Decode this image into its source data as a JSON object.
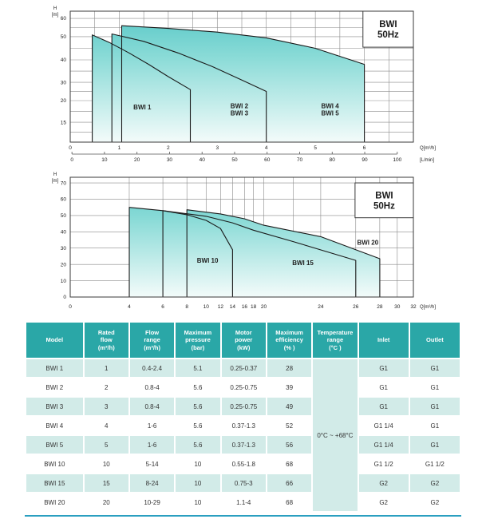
{
  "colors": {
    "header_teal": "#2aa7a7",
    "row_alt_teal": "#d2ebe8",
    "accent_line": "#2a9fc0",
    "fill_top": "#58c8c7",
    "fill_mid": "#8adbd7",
    "fill_bottom": "#f3fbfa",
    "grid": "#8a8a8a",
    "border": "#3a3a3a",
    "curve": "#1a1a1a"
  },
  "chart_data": [
    {
      "type": "area",
      "title_box": {
        "lines": [
          "BWI",
          "50Hz"
        ],
        "fx0": 0.853,
        "fy0": 0.0,
        "fx1": 1.0,
        "fy1": 0.275
      },
      "x_axis": {
        "title": "Q[m³/h]",
        "xlabel_dy": 9,
        "map": [
          [
            0,
            0
          ],
          [
            7,
            1
          ]
        ],
        "ticks": [
          {
            "v": 0,
            "label": "0"
          },
          {
            "v": 1,
            "label": "1"
          },
          {
            "v": 2,
            "label": "2"
          },
          {
            "v": 3,
            "label": "3"
          },
          {
            "v": 4,
            "label": "4"
          },
          {
            "v": 5,
            "label": "5"
          },
          {
            "v": 6,
            "label": "6"
          }
        ],
        "gridlines": [
          0.5,
          1,
          1.5,
          2,
          2.5,
          3,
          3.5,
          4,
          4.5,
          5,
          5.5,
          6,
          6.5
        ]
      },
      "y_axis": {
        "title_lines": [
          "H",
          "[m]"
        ],
        "baseline": 10,
        "map": [
          [
            60,
            0.055
          ],
          [
            50,
            0.195
          ],
          [
            40,
            0.372
          ],
          [
            30,
            0.543
          ],
          [
            20,
            0.683
          ],
          [
            15,
            0.848
          ],
          [
            10,
            1.0
          ]
        ],
        "ticks": [
          {
            "v": 60,
            "label": "60"
          },
          {
            "v": 50,
            "label": "50"
          },
          {
            "v": 40,
            "label": "40"
          },
          {
            "v": 30,
            "label": "30"
          },
          {
            "v": 20,
            "label": "20"
          },
          {
            "v": 15,
            "label": "15"
          }
        ],
        "gridlines": [
          60,
          55,
          50,
          45,
          40,
          35,
          30,
          25,
          20,
          17.5,
          15,
          12.5
        ]
      },
      "ruler": {
        "unit": "[L/min]",
        "step": 10,
        "max": 100,
        "f0": 0.005,
        "f1": 0.953,
        "labels": [
          "0",
          "10",
          "20",
          "30",
          "40",
          "50",
          "60",
          "70",
          "80",
          "90",
          "100"
        ]
      },
      "regions": [
        {
          "name": "BWI 4/5",
          "points": [
            [
              1.05,
              56
            ],
            [
              2,
              54.5
            ],
            [
              3,
              52.5
            ],
            [
              4,
              49.5
            ],
            [
              5,
              45
            ],
            [
              6,
              38
            ]
          ]
        },
        {
          "name": "BWI 2/3",
          "points": [
            [
              0.85,
              51.5
            ],
            [
              1.5,
              48
            ],
            [
              2.2,
              43
            ],
            [
              2.9,
              37
            ],
            [
              3.5,
              31
            ],
            [
              4.0,
              25
            ]
          ]
        },
        {
          "name": "BWI 1",
          "points": [
            [
              0.45,
              51
            ],
            [
              0.8,
              47.5
            ],
            [
              1.2,
              43
            ],
            [
              1.6,
              38
            ],
            [
              2.0,
              32.5
            ],
            [
              2.45,
              26
            ]
          ]
        }
      ],
      "labels": [
        {
          "lines": [
            "BWI 1"
          ],
          "x": 1.47,
          "y": 18.5
        },
        {
          "lines": [
            "BWI 2",
            "BWI 3"
          ],
          "x": 3.45,
          "y": 18
        },
        {
          "lines": [
            "BWI 4",
            "BWI 5"
          ],
          "x": 5.3,
          "y": 18
        }
      ]
    },
    {
      "type": "area",
      "title_box": {
        "lines": [
          "BWI",
          "50Hz"
        ],
        "fx0": 0.83,
        "fy0": 0.047,
        "fx1": 1.0,
        "fy1": 0.338
      },
      "x_axis": {
        "title": "Q[m³/h]",
        "xlabel_dy": 14,
        "map": [
          [
            0,
            0
          ],
          [
            4,
            0.172
          ],
          [
            6,
            0.27
          ],
          [
            8,
            0.34
          ],
          [
            10,
            0.396
          ],
          [
            12,
            0.438
          ],
          [
            14,
            0.473
          ],
          [
            16,
            0.508
          ],
          [
            18,
            0.534
          ],
          [
            20,
            0.564
          ],
          [
            22,
            0.65
          ],
          [
            24,
            0.73
          ],
          [
            26,
            0.832
          ],
          [
            28,
            0.902
          ],
          [
            30,
            0.953
          ],
          [
            32,
            1.0
          ]
        ],
        "ticks": [
          {
            "v": 0,
            "label": "0"
          },
          {
            "v": 4,
            "label": "4"
          },
          {
            "v": 6,
            "label": "6"
          },
          {
            "v": 8,
            "label": "8"
          },
          {
            "v": 10,
            "label": "10"
          },
          {
            "v": 12,
            "label": "12"
          },
          {
            "v": 14,
            "label": "14"
          },
          {
            "v": 16,
            "label": "16"
          },
          {
            "v": 18,
            "label": "18"
          },
          {
            "v": 20,
            "label": "20"
          },
          {
            "v": 24,
            "label": "24"
          },
          {
            "v": 26,
            "label": "26"
          },
          {
            "v": 28,
            "label": "28"
          },
          {
            "v": 30,
            "label": "30"
          },
          {
            "v": 32,
            "label": "32"
          }
        ],
        "gridlines": [
          4,
          6,
          8,
          10,
          12,
          14,
          16,
          18,
          20,
          22,
          24,
          26,
          28,
          30
        ]
      },
      "y_axis": {
        "title_lines": [
          "H",
          "[m]"
        ],
        "baseline": 0,
        "map": [
          [
            70,
            0.047
          ],
          [
            0,
            1.0
          ]
        ],
        "ticks": [
          {
            "v": 70,
            "label": "70"
          },
          {
            "v": 60,
            "label": "60"
          },
          {
            "v": 50,
            "label": "50"
          },
          {
            "v": 40,
            "label": "40"
          },
          {
            "v": 30,
            "label": "30"
          },
          {
            "v": 20,
            "label": "20"
          },
          {
            "v": 10,
            "label": "10"
          },
          {
            "v": 0,
            "label": "0"
          }
        ],
        "gridlines": [
          70,
          60,
          50,
          40,
          30,
          20,
          10
        ]
      },
      "regions": [
        {
          "name": "BWI 20",
          "points": [
            [
              8,
              53.5
            ],
            [
              12,
              51
            ],
            [
              16,
              48
            ],
            [
              20,
              44
            ],
            [
              24,
              37
            ],
            [
              28,
              23.5
            ]
          ]
        },
        {
          "name": "BWI 15",
          "points": [
            [
              6,
              53
            ],
            [
              10,
              49.5
            ],
            [
              14,
              45.5
            ],
            [
              18,
              41
            ],
            [
              22,
              34
            ],
            [
              26,
              22.5
            ]
          ]
        },
        {
          "name": "BWI 10",
          "points": [
            [
              4,
              55
            ],
            [
              6,
              53
            ],
            [
              8,
              50.5
            ],
            [
              10,
              47
            ],
            [
              12,
              42
            ],
            [
              14,
              29
            ]
          ]
        }
      ],
      "labels": [
        {
          "lines": [
            "BWI 10"
          ],
          "x": 10.2,
          "y": 22.5
        },
        {
          "lines": [
            "BWI 15"
          ],
          "x": 22.7,
          "y": 21
        },
        {
          "lines": [
            "BWI 20"
          ],
          "x": 27.0,
          "y": 33.5
        }
      ]
    }
  ],
  "table": {
    "headers": [
      {
        "lines": [
          "Model"
        ]
      },
      {
        "lines": [
          "Rated",
          "flow",
          "(m³/h)"
        ]
      },
      {
        "lines": [
          "Flow",
          "range",
          "(m³/h)"
        ]
      },
      {
        "lines": [
          "Maximum",
          "pressure",
          "(bar)"
        ]
      },
      {
        "lines": [
          "Motor",
          "power",
          "(kW)"
        ]
      },
      {
        "lines": [
          "Maximum",
          "efficiency",
          "(% )"
        ]
      },
      {
        "lines": [
          "Temperature",
          "range",
          "(°C )"
        ]
      },
      {
        "lines": [
          "Inlet"
        ]
      },
      {
        "lines": [
          "Outlet"
        ]
      }
    ],
    "temperature_merged": "0°C ~ +68°C",
    "rows": [
      {
        "model": "BWI 1",
        "rated_flow": "1",
        "flow_range": "0.4-2.4",
        "max_pressure": "5.1",
        "motor_power": "0.25-0.37",
        "max_efficiency": "28",
        "inlet": "G1",
        "outlet": "G1"
      },
      {
        "model": "BWI 2",
        "rated_flow": "2",
        "flow_range": "0.8-4",
        "max_pressure": "5.6",
        "motor_power": "0.25-0.75",
        "max_efficiency": "39",
        "inlet": "G1",
        "outlet": "G1"
      },
      {
        "model": "BWI 3",
        "rated_flow": "3",
        "flow_range": "0.8-4",
        "max_pressure": "5.6",
        "motor_power": "0.25-0.75",
        "max_efficiency": "49",
        "inlet": "G1",
        "outlet": "G1"
      },
      {
        "model": "BWI 4",
        "rated_flow": "4",
        "flow_range": "1-6",
        "max_pressure": "5.6",
        "motor_power": "0.37-1.3",
        "max_efficiency": "52",
        "inlet": "G1 1/4",
        "outlet": "G1"
      },
      {
        "model": "BWI 5",
        "rated_flow": "5",
        "flow_range": "1-6",
        "max_pressure": "5.6",
        "motor_power": "0.37-1.3",
        "max_efficiency": "56",
        "inlet": "G1 1/4",
        "outlet": "G1"
      },
      {
        "model": "BWI 10",
        "rated_flow": "10",
        "flow_range": "5-14",
        "max_pressure": "10",
        "motor_power": "0.55-1.8",
        "max_efficiency": "68",
        "inlet": "G1 1/2",
        "outlet": "G1 1/2"
      },
      {
        "model": "BWI 15",
        "rated_flow": "15",
        "flow_range": "8-24",
        "max_pressure": "10",
        "motor_power": "0.75-3",
        "max_efficiency": "66",
        "inlet": "G2",
        "outlet": "G2"
      },
      {
        "model": "BWI 20",
        "rated_flow": "20",
        "flow_range": "10-29",
        "max_pressure": "10",
        "motor_power": "1.1-4",
        "max_efficiency": "68",
        "inlet": "G2",
        "outlet": "G2"
      }
    ]
  }
}
